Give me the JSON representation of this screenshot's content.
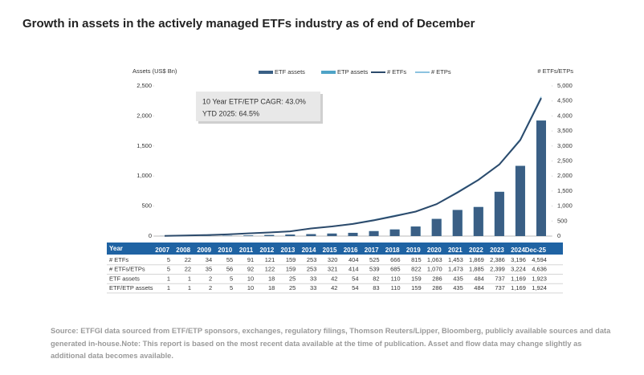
{
  "chart_data": {
    "type": "bar-line",
    "title": "Growth in assets in the actively managed ETFs industry as of end of December",
    "y_label": "Assets (US$ Bn)",
    "y2_label": "# ETFs/ETPs",
    "annotations": [
      "10 Year ETF/ETP CAGR: 43.0%",
      "YTD 2025: 64.5%"
    ],
    "table_header": "Year",
    "categories": [
      "2007",
      "2008",
      "2009",
      "2010",
      "2011",
      "2012",
      "2013",
      "2014",
      "2015",
      "2016",
      "2017",
      "2018",
      "2019",
      "2020",
      "2021",
      "2022",
      "2023",
      "2024",
      "Dec-25"
    ],
    "ylim": [
      0,
      2500
    ],
    "yticks": [
      0,
      500,
      {
        "value": 1000,
        "label": "1,000"
      },
      {
        "value": 1500,
        "label": "1,500"
      },
      {
        "value": 2000,
        "label": "2,000"
      },
      {
        "value": 2500,
        "label": "2,500"
      }
    ],
    "y2lim": [
      0,
      5000
    ],
    "y2ticks": [
      0,
      500,
      {
        "value": 1000,
        "label": "1,000"
      },
      {
        "value": 1500,
        "label": "1,500"
      },
      {
        "value": 2000,
        "label": "2,000"
      },
      {
        "value": 2500,
        "label": "2,500"
      },
      {
        "value": 3000,
        "label": "3,000"
      },
      {
        "value": 3500,
        "label": "3,500"
      },
      {
        "value": 4000,
        "label": "4,000"
      },
      {
        "value": 4500,
        "label": "4,500"
      },
      {
        "value": 5000,
        "label": "5,000"
      }
    ],
    "series": [
      {
        "name": "ETF assets",
        "table_label": "ETF assets",
        "kind": "bar",
        "color": "#3a5f85",
        "values": [
          1,
          1,
          2,
          5,
          10,
          18,
          25,
          33,
          42,
          54,
          82,
          110,
          159,
          286,
          435,
          484,
          737,
          1169,
          1923
        ],
        "value_labels": [
          "1",
          "1",
          "2",
          "5",
          "10",
          "18",
          "25",
          "33",
          "42",
          "54",
          "82",
          "110",
          "159",
          "286",
          "435",
          "484",
          "737",
          "1,169",
          "1,923"
        ]
      },
      {
        "name": "ETP assets",
        "table_label": "ETF/ETP assets",
        "kind": "bar",
        "color": "#4fa3c7",
        "values": [
          1,
          1,
          2,
          5,
          10,
          18,
          25,
          33,
          42,
          54,
          83,
          110,
          159,
          286,
          435,
          484,
          737,
          1169,
          1924
        ],
        "value_labels": [
          "1",
          "1",
          "2",
          "5",
          "10",
          "18",
          "25",
          "33",
          "42",
          "54",
          "83",
          "110",
          "159",
          "286",
          "435",
          "484",
          "737",
          "1,169",
          "1,924"
        ]
      },
      {
        "name": "# ETFs",
        "table_label": "# ETFs",
        "kind": "line",
        "axis": "y2",
        "color": "#2c4a6b",
        "values": [
          5,
          22,
          34,
          55,
          91,
          121,
          159,
          253,
          320,
          404,
          525,
          666,
          815,
          1063,
          1453,
          1869,
          2386,
          3196,
          4594
        ],
        "value_labels": [
          "5",
          "22",
          "34",
          "55",
          "91",
          "121",
          "159",
          "253",
          "320",
          "404",
          "525",
          "666",
          "815",
          "1,063",
          "1,453",
          "1,869",
          "2,386",
          "3,196",
          "4,594"
        ]
      },
      {
        "name": "# ETPs",
        "table_label": "# ETFs/ETPs",
        "kind": "line",
        "axis": "y2",
        "color": "#8cc3e0",
        "values": [
          5,
          22,
          35,
          56,
          92,
          122,
          159,
          253,
          321,
          414,
          539,
          685,
          822,
          1070,
          1473,
          1885,
          2399,
          3224,
          4636
        ],
        "value_labels": [
          "5",
          "22",
          "35",
          "56",
          "92",
          "122",
          "159",
          "253",
          "321",
          "414",
          "539",
          "685",
          "822",
          "1,070",
          "1,473",
          "1,885",
          "2,399",
          "3,224",
          "4,636"
        ]
      }
    ],
    "source": "Source: ETFGI data sourced from ETF/ETP sponsors, exchanges, regulatory filings, Thomson Reuters/Lipper, Bloomberg, publicly available sources and data generated in-house.Note: This report is based on the most recent data available at the time of publication. Asset and flow data may change slightly as additional data becomes available."
  }
}
